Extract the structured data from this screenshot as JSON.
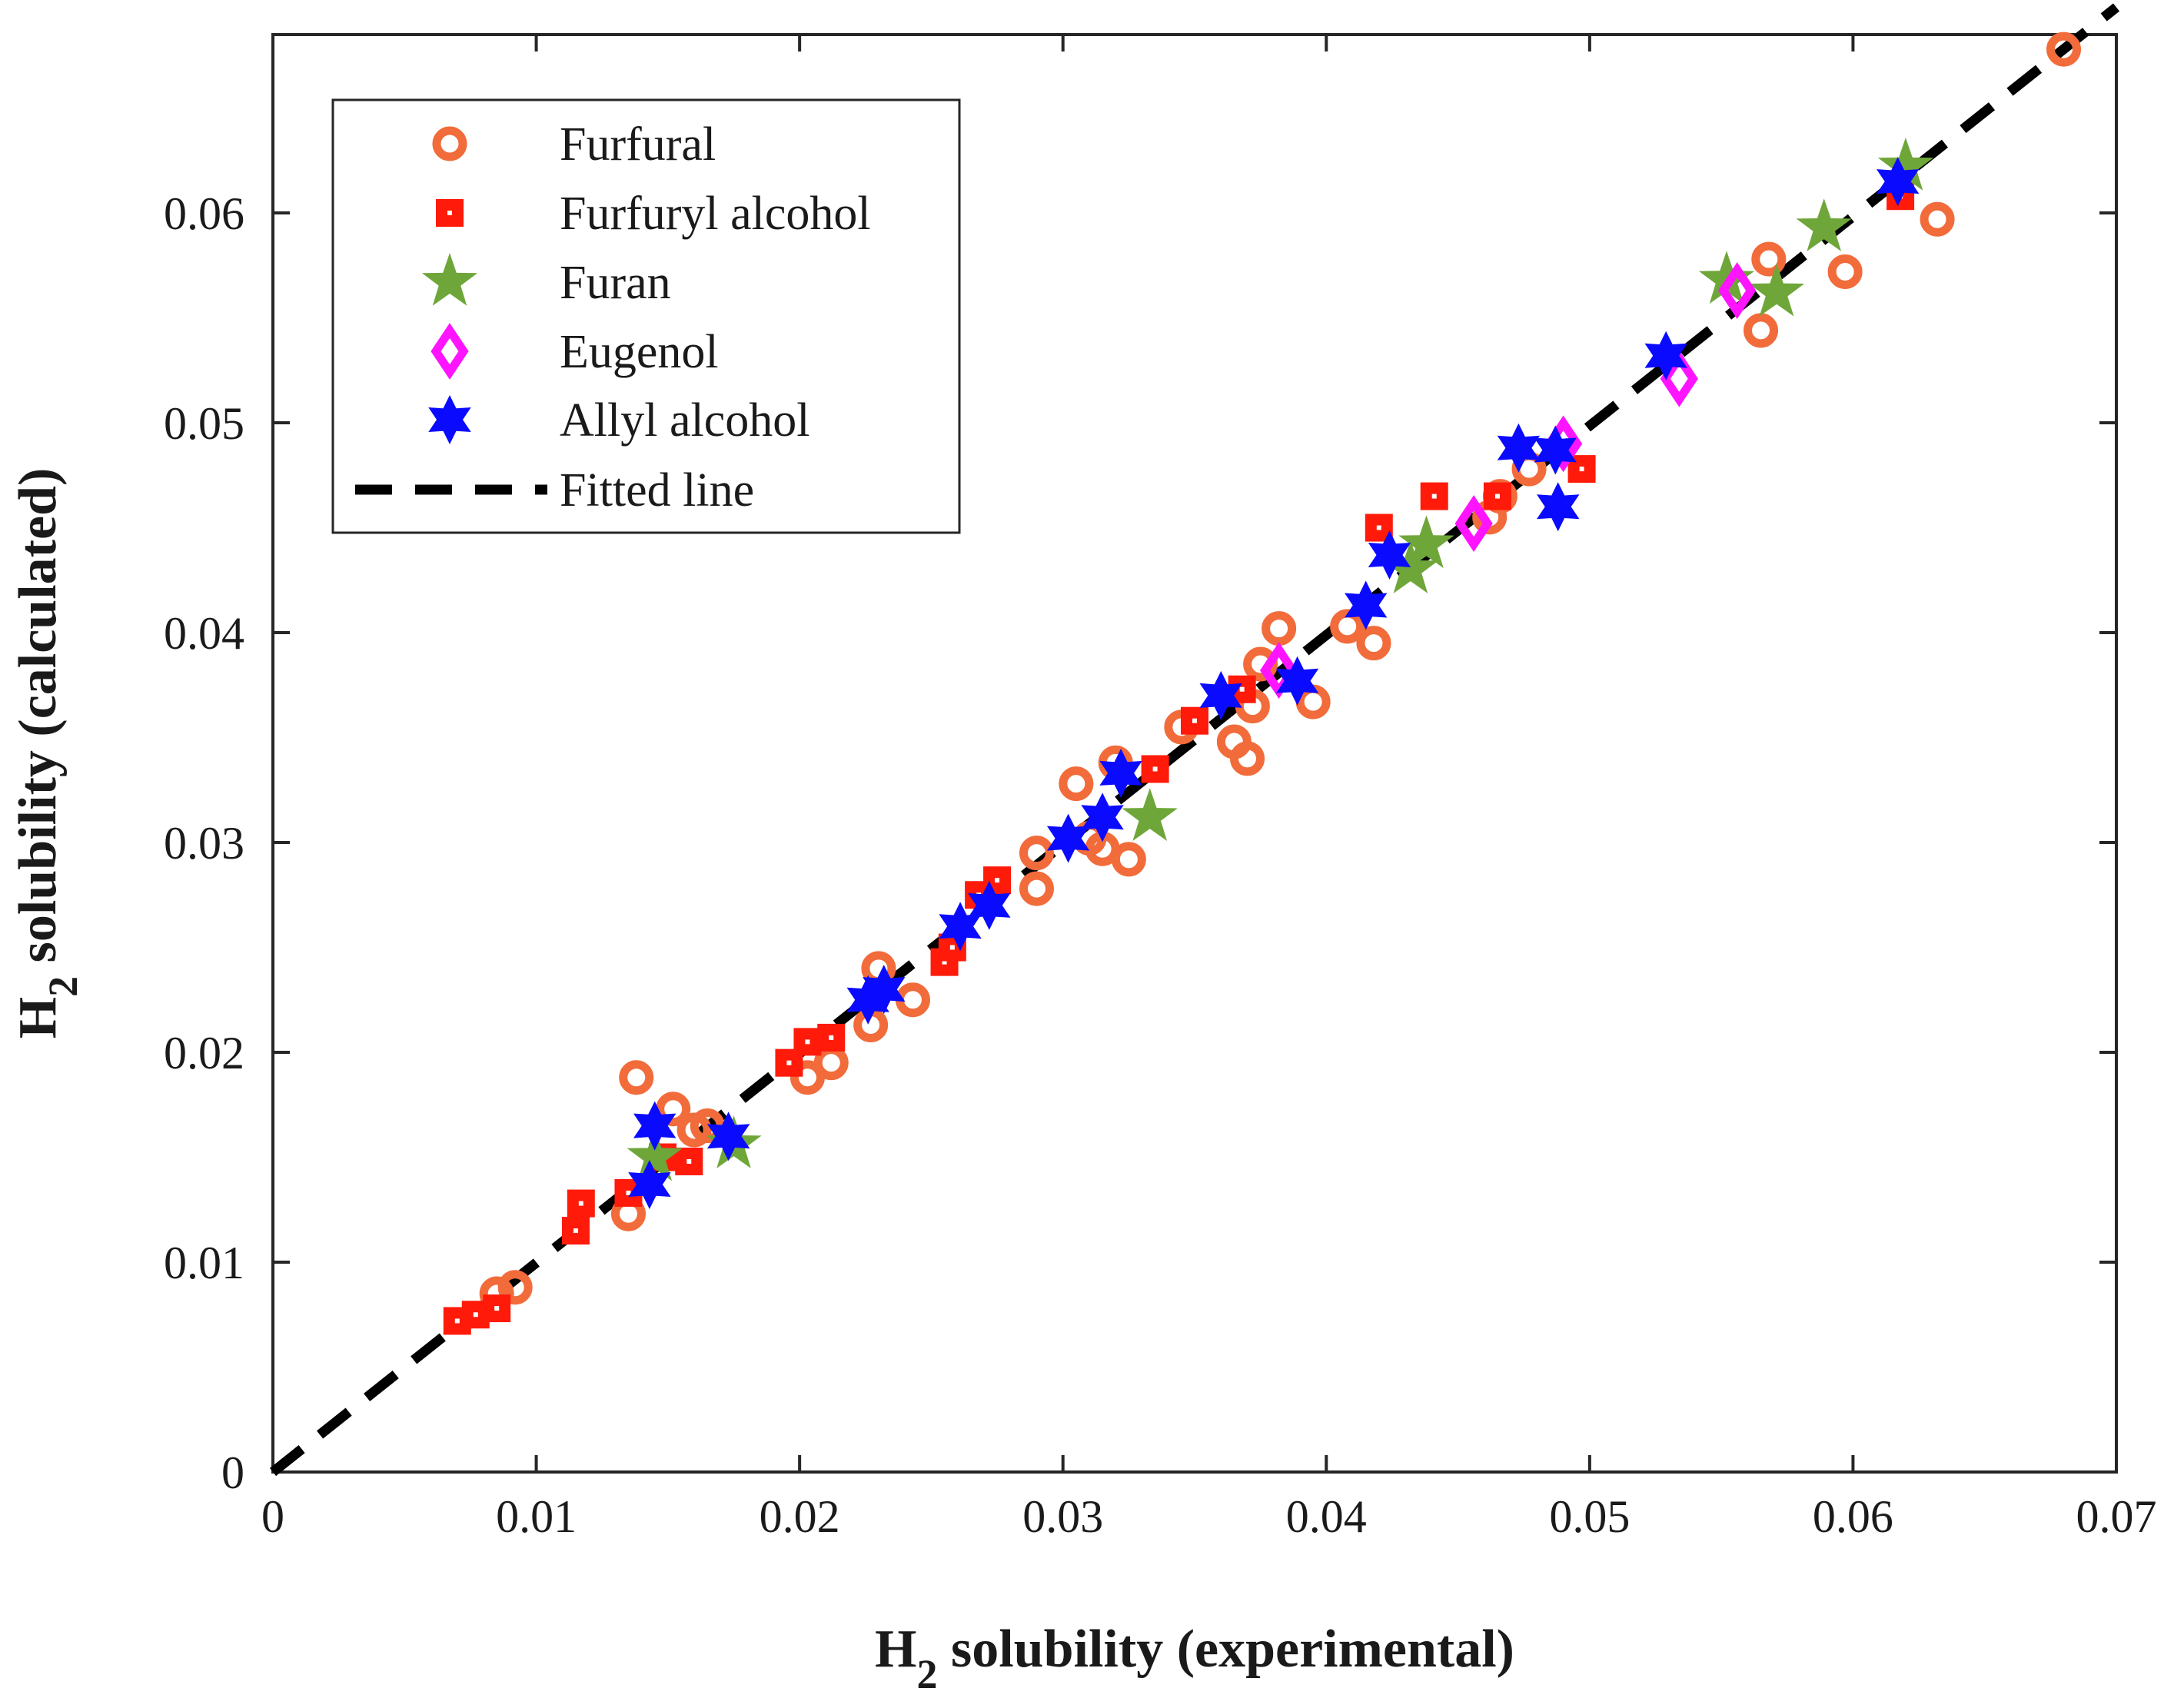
{
  "chart_data": {
    "type": "scatter",
    "xlabel": "H2 solubility (experimental)",
    "ylabel": "H2 solubility (calculated)",
    "xlabel_parts": {
      "pre": "H",
      "sub": "2",
      "post": " solubility (experimental)"
    },
    "ylabel_parts": {
      "pre": "H",
      "sub": "2",
      "post": " solubility (calculated)"
    },
    "xlim": [
      0,
      0.07
    ],
    "ylim": [
      0,
      0.0685
    ],
    "xticks": [
      0,
      0.01,
      0.02,
      0.03,
      0.04,
      0.05,
      0.06,
      0.07
    ],
    "xtick_labels": [
      "0",
      "0.01",
      "0.02",
      "0.03",
      "0.04",
      "0.05",
      "0.06",
      "0.07"
    ],
    "yticks": [
      0,
      0.01,
      0.02,
      0.03,
      0.04,
      0.05,
      0.06
    ],
    "ytick_labels": [
      "0",
      "0.01",
      "0.02",
      "0.03",
      "0.04",
      "0.05",
      "0.06"
    ],
    "grid": false,
    "legend_position": "top-left",
    "series": [
      {
        "name": "Furfural",
        "marker": "circle",
        "color": "#F26B3A",
        "points": [
          [
            0.0085,
            0.0085
          ],
          [
            0.0092,
            0.0088
          ],
          [
            0.0135,
            0.0123
          ],
          [
            0.0138,
            0.0188
          ],
          [
            0.0152,
            0.0173
          ],
          [
            0.016,
            0.0163
          ],
          [
            0.0165,
            0.0165
          ],
          [
            0.0203,
            0.0188
          ],
          [
            0.0212,
            0.0195
          ],
          [
            0.0227,
            0.0213
          ],
          [
            0.023,
            0.024
          ],
          [
            0.0243,
            0.0225
          ],
          [
            0.029,
            0.0278
          ],
          [
            0.029,
            0.0295
          ],
          [
            0.0305,
            0.0328
          ],
          [
            0.031,
            0.0302
          ],
          [
            0.0315,
            0.0297
          ],
          [
            0.032,
            0.0338
          ],
          [
            0.0325,
            0.0292
          ],
          [
            0.0345,
            0.0355
          ],
          [
            0.0365,
            0.0348
          ],
          [
            0.037,
            0.034
          ],
          [
            0.0372,
            0.0365
          ],
          [
            0.0375,
            0.0385
          ],
          [
            0.0382,
            0.0402
          ],
          [
            0.0395,
            0.0367
          ],
          [
            0.0408,
            0.0403
          ],
          [
            0.0418,
            0.0395
          ],
          [
            0.0462,
            0.0455
          ],
          [
            0.0466,
            0.0465
          ],
          [
            0.0477,
            0.0478
          ],
          [
            0.0565,
            0.0544
          ],
          [
            0.0568,
            0.0578
          ],
          [
            0.0597,
            0.0572
          ],
          [
            0.0632,
            0.0597
          ],
          [
            0.068,
            0.0678
          ]
        ]
      },
      {
        "name": "Furfuryl alcohol",
        "marker": "square",
        "color": "#FF1A0A",
        "points": [
          [
            0.007,
            0.0072
          ],
          [
            0.0077,
            0.0075
          ],
          [
            0.0085,
            0.0078
          ],
          [
            0.0115,
            0.0115
          ],
          [
            0.0117,
            0.0128
          ],
          [
            0.0135,
            0.0133
          ],
          [
            0.0148,
            0.015
          ],
          [
            0.0158,
            0.0148
          ],
          [
            0.0196,
            0.0195
          ],
          [
            0.0203,
            0.0205
          ],
          [
            0.0212,
            0.0207
          ],
          [
            0.0255,
            0.0243
          ],
          [
            0.0258,
            0.025
          ],
          [
            0.0268,
            0.0275
          ],
          [
            0.0275,
            0.0282
          ],
          [
            0.0335,
            0.0335
          ],
          [
            0.035,
            0.0358
          ],
          [
            0.0368,
            0.0373
          ],
          [
            0.042,
            0.045
          ],
          [
            0.0441,
            0.0465
          ],
          [
            0.0465,
            0.0465
          ],
          [
            0.0497,
            0.0478
          ],
          [
            0.0618,
            0.0608
          ]
        ]
      },
      {
        "name": "Furan",
        "marker": "star5",
        "color": "#6FA63A",
        "points": [
          [
            0.0145,
            0.015
          ],
          [
            0.0175,
            0.0156
          ],
          [
            0.0333,
            0.0312
          ],
          [
            0.0432,
            0.043
          ],
          [
            0.0438,
            0.0442
          ],
          [
            0.0552,
            0.0568
          ],
          [
            0.0571,
            0.0562
          ],
          [
            0.0589,
            0.0593
          ],
          [
            0.062,
            0.0622
          ]
        ]
      },
      {
        "name": "Eugenol",
        "marker": "diamond",
        "color": "#FF14FF",
        "points": [
          [
            0.0382,
            0.0382
          ],
          [
            0.0456,
            0.0452
          ],
          [
            0.049,
            0.049
          ],
          [
            0.0534,
            0.0521
          ],
          [
            0.0556,
            0.0563
          ]
        ]
      },
      {
        "name": "Allyl alcohol",
        "marker": "star6",
        "color": "#0A0AFF",
        "points": [
          [
            0.0143,
            0.0137
          ],
          [
            0.0145,
            0.0165
          ],
          [
            0.0173,
            0.016
          ],
          [
            0.0226,
            0.0225
          ],
          [
            0.0232,
            0.023
          ],
          [
            0.0261,
            0.026
          ],
          [
            0.0272,
            0.027
          ],
          [
            0.0302,
            0.0302
          ],
          [
            0.0315,
            0.0312
          ],
          [
            0.0322,
            0.0333
          ],
          [
            0.036,
            0.037
          ],
          [
            0.0389,
            0.0377
          ],
          [
            0.0415,
            0.0413
          ],
          [
            0.0424,
            0.0437
          ],
          [
            0.0473,
            0.0488
          ],
          [
            0.0487,
            0.0487
          ],
          [
            0.0488,
            0.046
          ],
          [
            0.0529,
            0.0532
          ],
          [
            0.0617,
            0.0615
          ]
        ]
      }
    ],
    "fitted_line": {
      "name": "Fitted line",
      "x": [
        0,
        0.07
      ],
      "y": [
        0,
        0.0698
      ],
      "color": "#000000",
      "style": "dashed"
    }
  }
}
